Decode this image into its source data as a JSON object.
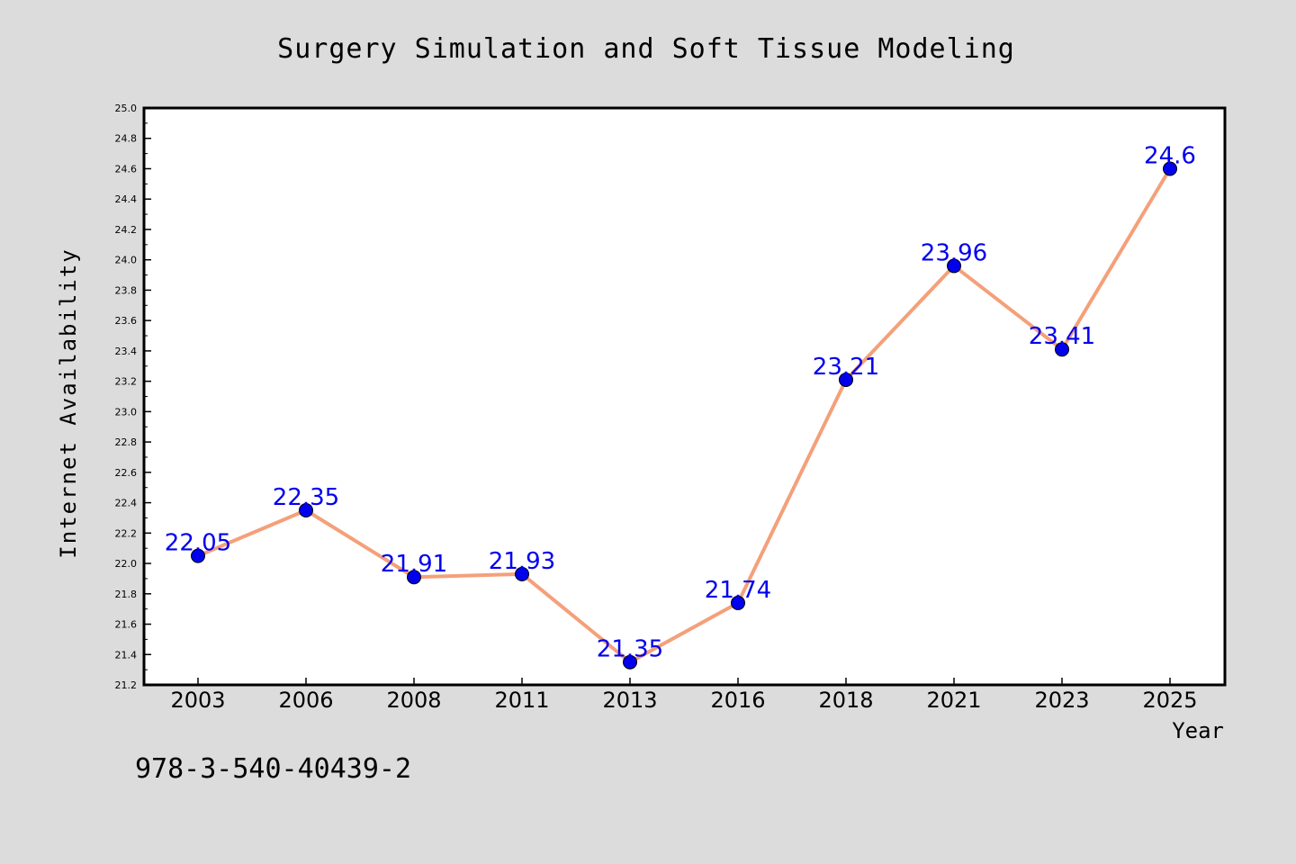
{
  "chart_data": {
    "type": "line",
    "title": "Surgery Simulation and Soft Tissue Modeling",
    "xlabel": "Year",
    "ylabel": "Internet Availability",
    "categories": [
      "2003",
      "2006",
      "2008",
      "2011",
      "2013",
      "2016",
      "2018",
      "2021",
      "2023",
      "2025"
    ],
    "series": [
      {
        "values": [
          22.05,
          22.35,
          21.91,
          21.93,
          21.35,
          21.74,
          23.21,
          23.96,
          23.41,
          24.6
        ],
        "labels": [
          "22.05",
          "22.35",
          "21.91",
          "21.93",
          "21.35",
          "21.74",
          "23.21",
          "23.96",
          "23.41",
          "24.6"
        ],
        "line_color": "#f4a07a",
        "marker_color": "#0000ee",
        "label_color": "#0000ee"
      }
    ],
    "ylim": [
      21.2,
      25.0
    ],
    "yticks": [
      "21.2",
      "21.4",
      "21.6",
      "21.8",
      "22.0",
      "22.2",
      "22.4",
      "22.6",
      "22.8",
      "23.0",
      "23.2",
      "23.4",
      "23.6",
      "23.8",
      "24.0",
      "24.2",
      "24.4",
      "24.6",
      "24.8",
      "25.0"
    ],
    "grid": false,
    "legend": "none"
  },
  "footer": {
    "isbn": "978-3-540-40439-2"
  },
  "colors": {
    "background": "#dcdcdc",
    "plot_background": "#ffffff",
    "axis": "#000000"
  }
}
